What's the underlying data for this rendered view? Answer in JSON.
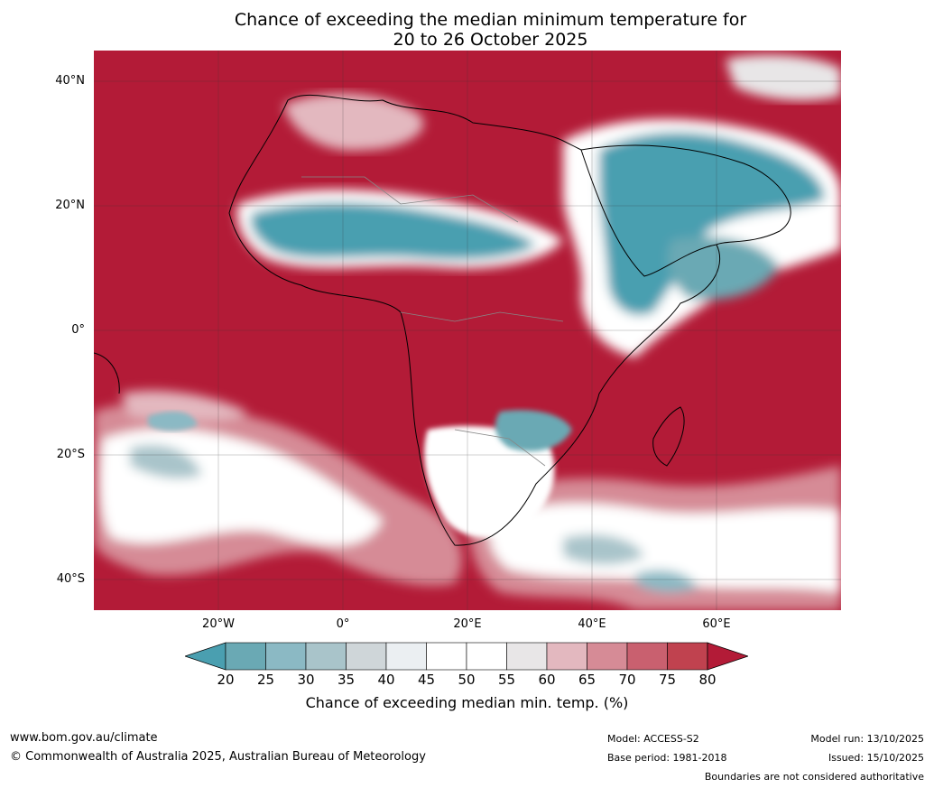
{
  "title": {
    "line1": "Chance of exceeding the median minimum temperature for",
    "line2": "20 to 26 October 2025"
  },
  "lat_labels": [
    "40°N",
    "20°N",
    "0°",
    "20°S",
    "40°S"
  ],
  "lon_labels": [
    "20°W",
    "0°",
    "20°E",
    "40°E",
    "60°E"
  ],
  "colorbar": {
    "ticks": [
      "20",
      "25",
      "30",
      "35",
      "40",
      "45",
      "50",
      "55",
      "60",
      "65",
      "70",
      "75",
      "80"
    ],
    "label": "Chance of exceeding median min. temp. (%)",
    "colors": [
      "#4a9fb0",
      "#6aa9b4",
      "#8bb9c4",
      "#a9c4ca",
      "#cfd6d9",
      "#ebeff2",
      "#ffffff",
      "#ffffff",
      "#e8e6e7",
      "#e3b8bf",
      "#d68b96",
      "#c9606f",
      "#c0424f",
      "#b31b37"
    ]
  },
  "map": {
    "high_color": "#b31b37",
    "low_color": "#4a9fb0",
    "mid_color": "#ffffff"
  },
  "footer": {
    "website": "www.bom.gov.au/climate",
    "copyright": "© Commonwealth of Australia 2025, Australian Bureau of Meteorology",
    "model": "Model: ACCESS-S2",
    "base_period": "Base period: 1981-2018",
    "model_run": "Model run: 13/10/2025",
    "issued": "Issued: 15/10/2025",
    "disclaimer": "Boundaries are not considered authoritative"
  }
}
